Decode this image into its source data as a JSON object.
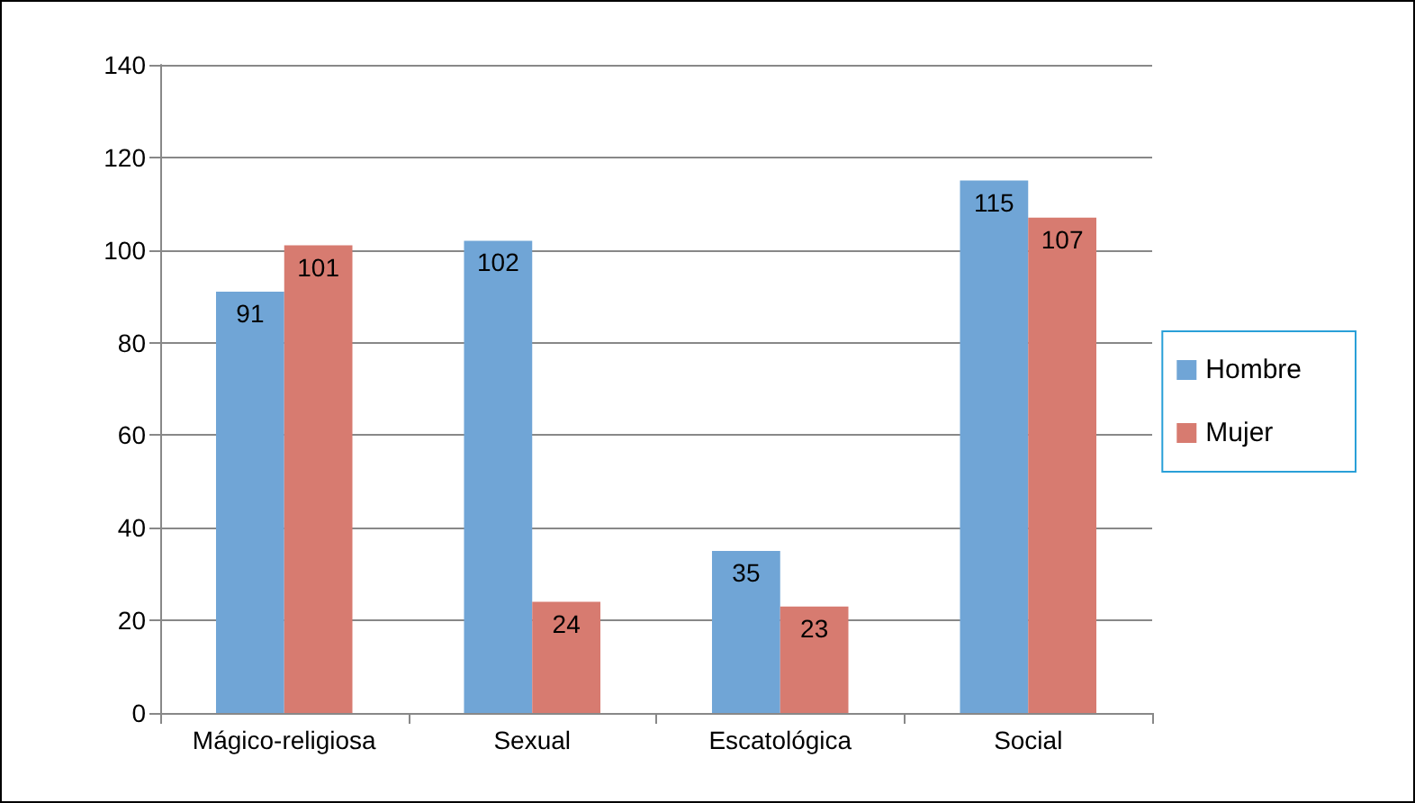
{
  "chart_data": {
    "type": "bar",
    "categories": [
      "Mágico-religiosa",
      "Sexual",
      "Escatológica",
      "Social"
    ],
    "series": [
      {
        "name": "Hombre",
        "color": "#70a5d6",
        "values": [
          91,
          102,
          35,
          115
        ]
      },
      {
        "name": "Mujer",
        "color": "#d77b70",
        "values": [
          101,
          24,
          23,
          107
        ]
      }
    ],
    "ylim": [
      0,
      140
    ],
    "yticks": [
      0,
      20,
      40,
      60,
      80,
      100,
      120,
      140
    ],
    "grid": "y",
    "legend": "right",
    "data_labels": true
  }
}
